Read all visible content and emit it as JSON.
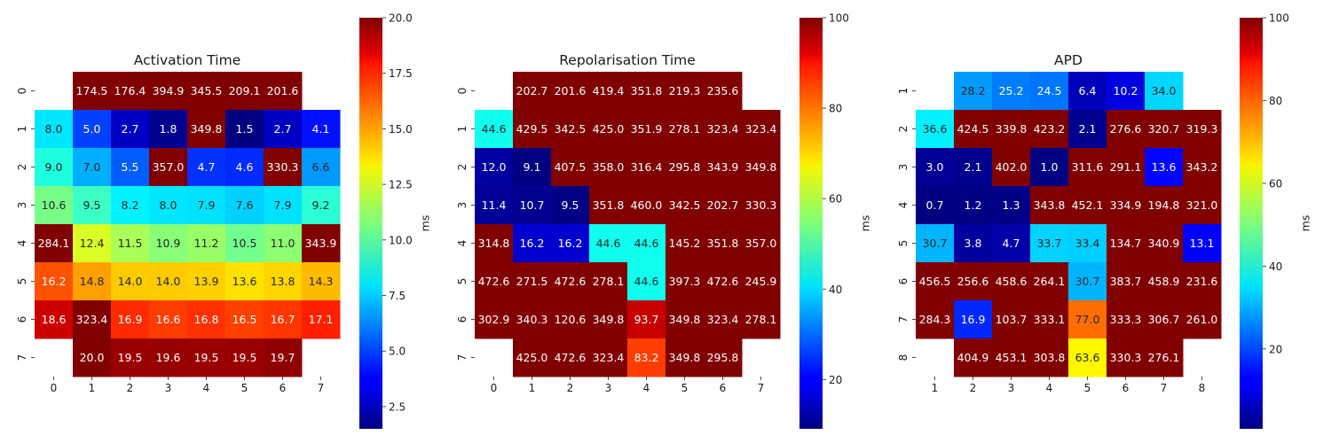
{
  "chart_data": [
    {
      "type": "heatmap",
      "title": "Activation Time",
      "x_tick_labels": [
        "0",
        "1",
        "2",
        "3",
        "4",
        "5",
        "6",
        "7"
      ],
      "y_tick_labels": [
        "0",
        "1",
        "2",
        "3",
        "4",
        "5",
        "6",
        "7"
      ],
      "values": [
        [
          null,
          174.5,
          176.4,
          394.9,
          345.5,
          209.1,
          201.6,
          null
        ],
        [
          8.0,
          5.0,
          2.7,
          1.8,
          349.8,
          1.5,
          2.7,
          4.1
        ],
        [
          9.0,
          7.0,
          5.5,
          357.0,
          4.7,
          4.6,
          330.3,
          6.6
        ],
        [
          10.6,
          9.5,
          8.2,
          8.0,
          7.9,
          7.6,
          7.9,
          9.2
        ],
        [
          284.1,
          12.4,
          11.5,
          10.9,
          11.2,
          10.5,
          11.0,
          343.9
        ],
        [
          16.2,
          14.8,
          14.0,
          14.0,
          13.9,
          13.6,
          13.8,
          14.3
        ],
        [
          18.6,
          323.4,
          16.9,
          16.6,
          16.8,
          16.5,
          16.7,
          17.1
        ],
        [
          null,
          20.0,
          19.5,
          19.6,
          19.5,
          19.5,
          19.7,
          null
        ]
      ],
      "colormap": "jet",
      "vmin": 1.5,
      "vmax": 20,
      "colorbar_ticks": [
        2.5,
        5.0,
        7.5,
        10.0,
        12.5,
        15.0,
        17.5,
        20.0
      ],
      "colorbar_tick_labels": [
        "2.5",
        "5.0",
        "7.5",
        "10.0",
        "12.5",
        "15.0",
        "17.5",
        "20.0"
      ],
      "colorbar_label": "ms",
      "annotated": true
    },
    {
      "type": "heatmap",
      "title": "Repolarisation Time",
      "x_tick_labels": [
        "0",
        "1",
        "2",
        "3",
        "4",
        "5",
        "6",
        "7"
      ],
      "y_tick_labels": [
        "0",
        "1",
        "2",
        "3",
        "4",
        "5",
        "6",
        "7"
      ],
      "values": [
        [
          null,
          202.7,
          201.6,
          419.4,
          351.8,
          219.3,
          235.6,
          null
        ],
        [
          44.6,
          429.5,
          342.5,
          425.0,
          351.9,
          278.1,
          323.4,
          323.4
        ],
        [
          12.0,
          9.1,
          407.5,
          358.0,
          316.4,
          295.8,
          343.9,
          349.8
        ],
        [
          11.4,
          10.7,
          9.5,
          351.8,
          460.0,
          342.5,
          202.7,
          330.3
        ],
        [
          314.8,
          16.2,
          16.2,
          44.6,
          44.6,
          145.2,
          351.8,
          357.0
        ],
        [
          472.6,
          271.5,
          472.6,
          278.1,
          44.6,
          397.3,
          472.6,
          245.9
        ],
        [
          302.9,
          340.3,
          120.6,
          349.8,
          93.7,
          349.8,
          323.4,
          278.1
        ],
        [
          null,
          425.0,
          472.6,
          323.4,
          83.2,
          349.8,
          295.8,
          null
        ]
      ],
      "colormap": "jet",
      "vmin": 9.1,
      "vmax": 100,
      "colorbar_ticks": [
        20,
        40,
        60,
        80,
        100
      ],
      "colorbar_tick_labels": [
        "20",
        "40",
        "60",
        "80",
        "100"
      ],
      "colorbar_label": "ms",
      "annotated": true
    },
    {
      "type": "heatmap",
      "title": "APD",
      "x_tick_labels": [
        "1",
        "2",
        "3",
        "4",
        "5",
        "6",
        "7",
        "8"
      ],
      "y_tick_labels": [
        "1",
        "2",
        "3",
        "4",
        "5",
        "6",
        "7",
        "8"
      ],
      "values": [
        [
          null,
          28.2,
          25.2,
          24.5,
          6.4,
          10.2,
          34.0,
          null
        ],
        [
          36.6,
          424.5,
          339.8,
          423.2,
          2.1,
          276.6,
          320.7,
          319.3
        ],
        [
          3.0,
          2.1,
          402.0,
          1.0,
          311.6,
          291.1,
          13.6,
          343.2
        ],
        [
          0.7,
          1.2,
          1.3,
          343.8,
          452.1,
          334.9,
          194.8,
          321.0
        ],
        [
          30.7,
          3.8,
          4.7,
          33.7,
          33.4,
          134.7,
          340.9,
          13.1
        ],
        [
          456.5,
          256.6,
          458.6,
          264.1,
          30.7,
          383.7,
          458.9,
          231.6
        ],
        [
          284.3,
          16.9,
          103.7,
          333.1,
          77.0,
          333.3,
          306.7,
          261.0
        ],
        [
          null,
          404.9,
          453.1,
          303.8,
          63.6,
          330.3,
          276.1,
          null
        ]
      ],
      "colormap": "jet",
      "vmin": 0.7,
      "vmax": 100,
      "colorbar_ticks": [
        20,
        40,
        60,
        80,
        100
      ],
      "colorbar_tick_labels": [
        "20",
        "40",
        "60",
        "80",
        "100"
      ],
      "colorbar_label": "ms",
      "annotated": true
    }
  ]
}
